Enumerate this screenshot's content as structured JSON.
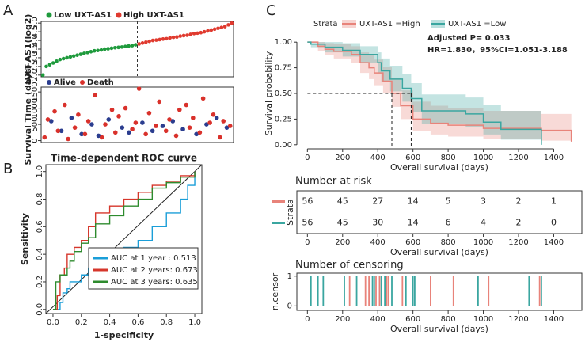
{
  "panel_labels": [
    "A",
    "B",
    "C"
  ],
  "chart_data": [
    {
      "type": "index-scatter",
      "ylabel": "UXT-AS1(log2)",
      "ylim": [
        1.9,
        5.1
      ],
      "yticks": [
        {
          "value": 2,
          "label": "2.0"
        },
        {
          "value": 2.5,
          "label": "2.5"
        },
        {
          "value": 3,
          "label": "3.0"
        },
        {
          "value": 3.5,
          "label": "3.5"
        },
        {
          "value": 4,
          "label": "4.0"
        },
        {
          "value": 4.5,
          "label": "4.5"
        },
        {
          "value": 5,
          "label": "5.0"
        }
      ],
      "divider": true,
      "series": [
        {
          "name": "Low UXT-AS1",
          "color": "#1e9a3c",
          "values": [
            2.0,
            2.5,
            2.6,
            2.7,
            2.8,
            2.9,
            2.95,
            3.0,
            3.05,
            3.1,
            3.15,
            3.2,
            3.25,
            3.3,
            3.35,
            3.4,
            3.42,
            3.45,
            3.5,
            3.52,
            3.55,
            3.58,
            3.6,
            3.62,
            3.65,
            3.68,
            3.7,
            3.75
          ]
        },
        {
          "name": "High UXT-AS1",
          "color": "#e03a2f",
          "values": [
            3.8,
            3.85,
            3.9,
            3.95,
            4.0,
            4.02,
            4.05,
            4.08,
            4.1,
            4.15,
            4.18,
            4.2,
            4.25,
            4.28,
            4.3,
            4.35,
            4.4,
            4.42,
            4.45,
            4.5,
            4.55,
            4.6,
            4.65,
            4.7,
            4.75,
            4.8,
            4.9,
            5.0
          ]
        }
      ]
    },
    {
      "type": "scatter",
      "ylabel": "Survival Time (days)",
      "xlim": [
        0,
        57
      ],
      "ylim": [
        -60,
        1650
      ],
      "yticks": [
        0,
        500,
        1000,
        1500
      ],
      "series": [
        {
          "name": "Alive",
          "color": "#2b3d8f",
          "x": [
            3,
            6,
            9,
            12,
            15,
            17,
            20,
            24,
            26,
            30,
            33,
            36,
            39,
            42,
            46,
            49,
            52,
            55
          ],
          "values": [
            600,
            300,
            700,
            200,
            500,
            150,
            650,
            400,
            250,
            550,
            300,
            450,
            600,
            350,
            200,
            500,
            700,
            400
          ]
        },
        {
          "name": "Death",
          "color": "#d9312b",
          "x": [
            1,
            2,
            4,
            5,
            7,
            8,
            10,
            11,
            13,
            14,
            16,
            18,
            19,
            21,
            22,
            23,
            25,
            27,
            28,
            29,
            31,
            32,
            34,
            35,
            37,
            38,
            40,
            41,
            43,
            44,
            45,
            47,
            48,
            50,
            51,
            53,
            54,
            56
          ],
          "values": [
            100,
            650,
            900,
            300,
            1100,
            50,
            400,
            800,
            200,
            600,
            1400,
            100,
            500,
            950,
            250,
            750,
            1000,
            350,
            550,
            1600,
            200,
            850,
            450,
            1200,
            300,
            650,
            150,
            950,
            1100,
            400,
            700,
            250,
            1300,
            550,
            800,
            100,
            600,
            450
          ]
        }
      ]
    },
    {
      "type": "roc",
      "title": "Time-dependent ROC curve",
      "xlabel": "1-specificity",
      "ylabel": "Sensitivity",
      "xlim": [
        -0.05,
        1.05
      ],
      "ylim": [
        -0.03,
        1.05
      ],
      "xticks": [
        {
          "value": 0,
          "label": "0.0"
        },
        {
          "value": 0.2,
          "label": "0.2"
        },
        {
          "value": 0.4,
          "label": "0.4"
        },
        {
          "value": 0.6,
          "label": "0.6"
        },
        {
          "value": 0.8,
          "label": "0.8"
        },
        {
          "value": 1,
          "label": "1.0"
        }
      ],
      "yticks": [
        {
          "value": 0,
          "label": "0.0"
        },
        {
          "value": 0.2,
          "label": "0.2"
        },
        {
          "value": 0.4,
          "label": "0.4"
        },
        {
          "value": 0.6,
          "label": "0.6"
        },
        {
          "value": 0.8,
          "label": "0.8"
        },
        {
          "value": 1,
          "label": "1.0"
        }
      ],
      "diagonal": true,
      "series": [
        {
          "name": "AUC at 1 year : 0.513",
          "color": "#1a9ed8",
          "x": [
            0,
            0.05,
            0.07,
            0.1,
            0.12,
            0.2,
            0.25,
            0.3,
            0.4,
            0.5,
            0.6,
            0.7,
            0.8,
            0.9,
            0.95,
            1
          ],
          "values": [
            0,
            0.05,
            0.12,
            0.15,
            0.2,
            0.25,
            0.3,
            0.35,
            0.4,
            0.45,
            0.5,
            0.6,
            0.7,
            0.8,
            0.9,
            1
          ]
        },
        {
          "name": "AUC at 2 years: 0.673",
          "color": "#d6362b",
          "x": [
            0,
            0.03,
            0.05,
            0.08,
            0.1,
            0.15,
            0.2,
            0.25,
            0.3,
            0.4,
            0.5,
            0.6,
            0.7,
            0.8,
            0.9,
            1
          ],
          "values": [
            0,
            0.1,
            0.25,
            0.3,
            0.4,
            0.45,
            0.5,
            0.6,
            0.7,
            0.75,
            0.8,
            0.85,
            0.9,
            0.93,
            0.97,
            1
          ]
        },
        {
          "name": "AUC at 3 years: 0.635",
          "color": "#2e8b2e",
          "x": [
            0,
            0.02,
            0.05,
            0.1,
            0.12,
            0.15,
            0.2,
            0.25,
            0.3,
            0.4,
            0.5,
            0.6,
            0.7,
            0.8,
            0.9,
            1
          ],
          "values": [
            0,
            0.2,
            0.25,
            0.3,
            0.35,
            0.42,
            0.48,
            0.52,
            0.62,
            0.68,
            0.75,
            0.8,
            0.88,
            0.92,
            0.96,
            1
          ]
        }
      ]
    },
    {
      "type": "km",
      "legend_title": "Strata",
      "annotations": [
        "Adjusted P= 0.033",
        "HR=1.830，95%CI=1.051-3.188"
      ],
      "xlabel": "Overall survival (days)",
      "ylabel": "Survival probability",
      "xlim": [
        -60,
        1560
      ],
      "ylim": [
        -0.04,
        1.04
      ],
      "xticks": [
        0,
        200,
        400,
        600,
        800,
        1000,
        1200,
        1400
      ],
      "yticks": [
        {
          "value": 0,
          "label": "0.00"
        },
        {
          "value": 0.25,
          "label": "0.25"
        },
        {
          "value": 0.5,
          "label": "0.50"
        },
        {
          "value": 0.75,
          "label": "0.75"
        },
        {
          "value": 1,
          "label": "1.00"
        }
      ],
      "median_level": 0.5,
      "medians": [
        480,
        590
      ],
      "series": [
        {
          "name": "UXT-AS1 =High",
          "color": "#e8837a",
          "x": [
            0,
            60,
            100,
            150,
            250,
            300,
            350,
            380,
            430,
            480,
            530,
            600,
            700,
            800,
            1000,
            1330,
            1500
          ],
          "values": [
            1,
            0.96,
            0.93,
            0.91,
            0.88,
            0.8,
            0.75,
            0.7,
            0.62,
            0.5,
            0.38,
            0.25,
            0.21,
            0.19,
            0.16,
            0.14,
            0.03
          ],
          "lower": [
            1,
            0.91,
            0.87,
            0.84,
            0.8,
            0.7,
            0.64,
            0.58,
            0.5,
            0.37,
            0.25,
            0.13,
            0.1,
            0.08,
            0.06,
            0.04,
            0
          ],
          "upper": [
            1,
            1,
            0.99,
            0.98,
            0.96,
            0.9,
            0.87,
            0.83,
            0.76,
            0.65,
            0.53,
            0.42,
            0.38,
            0.36,
            0.33,
            0.3,
            0.22
          ]
        },
        {
          "name": "UXT-AS1 =Low",
          "color": "#3aa6a0",
          "x": [
            0,
            20,
            100,
            200,
            300,
            400,
            420,
            470,
            540,
            590,
            650,
            900,
            1000,
            1100,
            1330
          ],
          "values": [
            1,
            0.98,
            0.95,
            0.92,
            0.88,
            0.8,
            0.72,
            0.64,
            0.55,
            0.45,
            0.33,
            0.3,
            0.22,
            0.15,
            0
          ],
          "lower": [
            1,
            0.95,
            0.9,
            0.86,
            0.8,
            0.7,
            0.61,
            0.52,
            0.42,
            0.32,
            0.2,
            0.17,
            0.1,
            0.05,
            0
          ],
          "upper": [
            1,
            1,
            1,
            0.99,
            0.96,
            0.9,
            0.84,
            0.77,
            0.69,
            0.6,
            0.49,
            0.46,
            0.39,
            0.33,
            0.33
          ]
        }
      ]
    },
    {
      "type": "risk-table",
      "title": "Number at risk",
      "ylabel": "Strata",
      "xlabel": "Overall survival (days)",
      "xlim": [
        -60,
        1560
      ],
      "xticks": [
        0,
        200,
        400,
        600,
        800,
        1000,
        1200,
        1400
      ],
      "series": [
        {
          "color": "#e8837a",
          "values": [
            56,
            45,
            27,
            14,
            5,
            3,
            2,
            1
          ]
        },
        {
          "color": "#3aa6a0",
          "values": [
            56,
            45,
            30,
            14,
            6,
            4,
            2,
            0
          ]
        }
      ]
    },
    {
      "type": "censor",
      "title": "Number of censoring",
      "ylabel": "n.censor",
      "xlabel": "Overall survival (days)",
      "xlim": [
        -60,
        1560
      ],
      "xticks": [
        0,
        200,
        400,
        600,
        800,
        1000,
        1200,
        1400
      ],
      "ylim": [
        -0.15,
        1.1
      ],
      "yticks": [
        0,
        1
      ],
      "series": [
        {
          "color": "#e8837a",
          "x": [
            240,
            330,
            350,
            390,
            410,
            450,
            460,
            540,
            700,
            830,
            1030,
            1320
          ]
        },
        {
          "color": "#3aa6a0",
          "x": [
            20,
            60,
            90,
            210,
            280,
            370,
            380,
            420,
            440,
            480,
            560,
            600,
            610,
            970,
            1260,
            1330
          ]
        }
      ]
    }
  ]
}
